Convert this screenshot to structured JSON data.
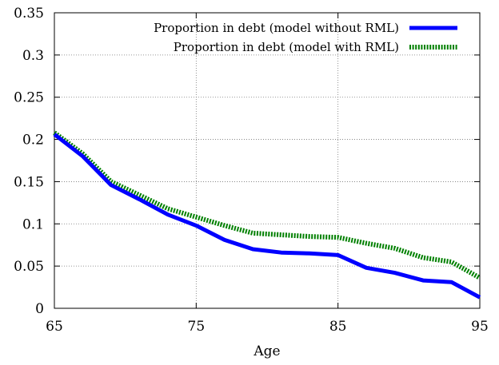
{
  "chart_data": {
    "type": "line",
    "xlabel": "Age",
    "ylabel": "",
    "xlim": [
      65,
      95
    ],
    "ylim": [
      0,
      0.35
    ],
    "x_ticks": [
      65,
      75,
      85,
      95
    ],
    "x_tick_labels": [
      "65",
      "75",
      "85",
      "95"
    ],
    "y_ticks": [
      0,
      0.05,
      0.1,
      0.15,
      0.2,
      0.25,
      0.3,
      0.35
    ],
    "y_tick_labels": [
      "0",
      "0.05",
      "0.1",
      "0.15",
      "0.2",
      "0.25",
      "0.3",
      "0.35"
    ],
    "grid": true,
    "legend_position": "top-right",
    "x": [
      65,
      67,
      69,
      71,
      73,
      75,
      77,
      79,
      81,
      83,
      85,
      87,
      89,
      91,
      93,
      95
    ],
    "series": [
      {
        "name": "Proportion in debt (model without RML)",
        "color": "#0000ff",
        "style": "solid",
        "values": [
          0.206,
          0.18,
          0.146,
          0.129,
          0.111,
          0.098,
          0.081,
          0.07,
          0.066,
          0.065,
          0.063,
          0.048,
          0.042,
          0.033,
          0.031,
          0.013
        ]
      },
      {
        "name": "Proportion in debt (model with RML)",
        "color": "#008000",
        "style": "dotted",
        "values": [
          0.208,
          0.183,
          0.15,
          0.134,
          0.118,
          0.108,
          0.098,
          0.089,
          0.087,
          0.085,
          0.084,
          0.077,
          0.071,
          0.06,
          0.055,
          0.036
        ]
      }
    ]
  }
}
